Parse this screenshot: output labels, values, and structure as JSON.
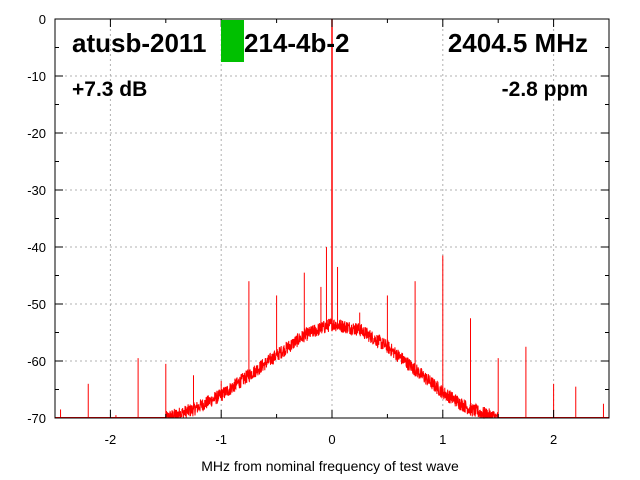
{
  "chart_data": {
    "type": "line",
    "title": "",
    "xlabel": "MHz from nominal frequency of test wave",
    "ylabel": "",
    "xlim": [
      -2.5,
      2.5
    ],
    "ylim": [
      -70,
      0
    ],
    "x_ticks": [
      -2,
      -1,
      0,
      1,
      2
    ],
    "y_ticks": [
      0,
      -10,
      -20,
      -30,
      -40,
      -50,
      -60,
      -70
    ],
    "grid": true,
    "annotations": {
      "device": "atusb-2011",
      "device_suffix": "214-4b-2",
      "frequency": "2404.5 MHz",
      "gain": "+7.3 dB",
      "drift": "-2.8 ppm"
    },
    "series": [
      {
        "color": "#ff0000",
        "noise_floor_curve": {
          "x": [
            -1.5,
            -1.25,
            -1.0,
            -0.75,
            -0.5,
            -0.25,
            0.0,
            0.25,
            0.5,
            0.75,
            1.0,
            1.25,
            1.5
          ],
          "y": [
            -70,
            -68.5,
            -66,
            -62.5,
            -59,
            -55.5,
            -53.5,
            -54.5,
            -57.5,
            -61.5,
            -65.5,
            -68.5,
            -70
          ]
        },
        "carrier": {
          "x": 0.0,
          "y": 0
        },
        "spurs": {
          "x": [
            -2.45,
            -2.2,
            -1.95,
            -1.75,
            -1.5,
            -1.25,
            -1.0,
            -0.75,
            -0.5,
            -0.25,
            -0.1,
            -0.05,
            0.05,
            0.25,
            0.5,
            0.75,
            1.0,
            1.25,
            1.5,
            1.75,
            2.0,
            2.2,
            2.45
          ],
          "y": [
            -68.5,
            -64,
            -69.5,
            -59.5,
            -60.5,
            -62.5,
            -63.5,
            -46,
            -48.5,
            -44.5,
            -47,
            -40,
            -43.5,
            -51.5,
            -48.5,
            -46,
            -41.5,
            -52.5,
            -59.5,
            -57.5,
            -64,
            -64.5,
            -67.5
          ]
        }
      }
    ]
  }
}
